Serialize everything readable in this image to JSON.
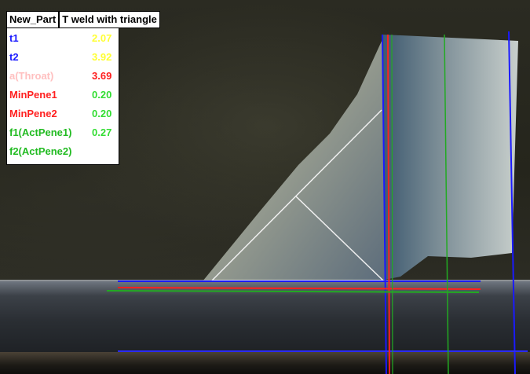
{
  "toolbar": {
    "part_name": "New_Part",
    "measurement_title": "T weld with triangle"
  },
  "measurements": [
    {
      "name": "t1",
      "value": "2.07",
      "name_color": "#1a1aff",
      "value_color": "#ffff33"
    },
    {
      "name": "t2",
      "value": "3.92",
      "name_color": "#1a1aff",
      "value_color": "#ffff33"
    },
    {
      "name": "a(Throat)",
      "value": "3.69",
      "name_color": "#ffc0c0",
      "value_color": "#ff2020"
    },
    {
      "name": "MinPene1",
      "value": "0.20",
      "name_color": "#ff2020",
      "value_color": "#33dd33"
    },
    {
      "name": "MinPene2",
      "value": "0.20",
      "name_color": "#ff2020",
      "value_color": "#33dd33"
    },
    {
      "name": "f1(ActPene1)",
      "value": "0.27",
      "name_color": "#22bb22",
      "value_color": "#33dd33"
    },
    {
      "name": "f2(ActPene2)",
      "value": "",
      "name_color": "#22bb22",
      "value_color": "#33dd33"
    }
  ],
  "overlay_colors": {
    "blue": "#1a1aff",
    "red": "#ff2020",
    "green": "#22aa22",
    "white": "#f0f0f0"
  }
}
